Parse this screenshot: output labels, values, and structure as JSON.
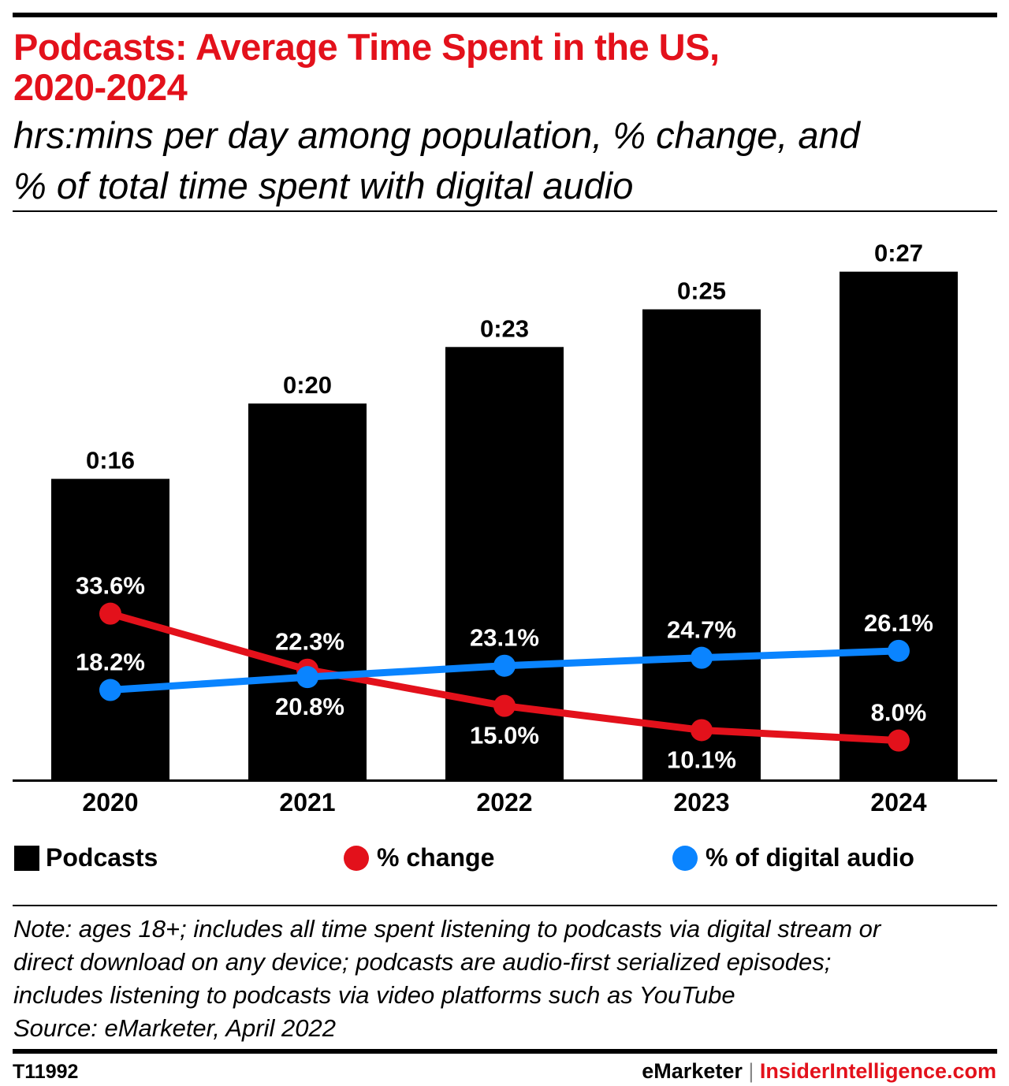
{
  "header": {
    "title_line1": "Podcasts: Average Time Spent in the US,",
    "title_line2": "2020-2024",
    "subtitle_line1": "hrs:mins per day among population, % change, and",
    "subtitle_line2": "% of total time spent with digital audio"
  },
  "chart_data": {
    "type": "bar",
    "categories": [
      "2020",
      "2021",
      "2022",
      "2023",
      "2024"
    ],
    "series": [
      {
        "name": "Podcasts",
        "type": "bar",
        "values": [
          16,
          20,
          23,
          25,
          27
        ],
        "labels": [
          "0:16",
          "0:20",
          "0:23",
          "0:25",
          "0:27"
        ],
        "unit": "minutes per day",
        "color": "#000000"
      },
      {
        "name": "% change",
        "type": "line",
        "values": [
          33.6,
          22.3,
          15.0,
          10.1,
          8.0
        ],
        "labels": [
          "33.6%",
          "22.3%",
          "15.0%",
          "10.1%",
          "8.0%"
        ],
        "color": "#e3111b"
      },
      {
        "name": "% of digital audio",
        "type": "line",
        "values": [
          18.2,
          20.8,
          23.1,
          24.7,
          26.1
        ],
        "labels": [
          "18.2%",
          "20.8%",
          "23.1%",
          "24.7%",
          "26.1%"
        ],
        "color": "#0a84ff"
      }
    ],
    "grid": false,
    "legend_position": "bottom"
  },
  "legend": {
    "podcasts": "Podcasts",
    "change": "% change",
    "digital": "% of digital audio"
  },
  "footer": {
    "note_line1": "Note: ages 18+; includes all time spent listening to podcasts via digital stream or",
    "note_line2": "direct download on any device; podcasts are audio-first serialized episodes;",
    "note_line3": "includes listening to podcasts via video platforms such as YouTube",
    "source": "Source: eMarketer, April 2022",
    "code": "T11992",
    "brand1": "eMarketer",
    "separator": "|",
    "brand2": "InsiderIntelligence.com"
  }
}
